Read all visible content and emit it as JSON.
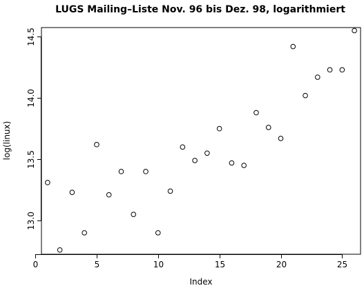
{
  "chart_data": {
    "type": "scatter",
    "title": "LUGS Mailing–Liste Nov. 96 bis Dez. 98, logarithmiert",
    "xlabel": "Index",
    "ylabel": "log(linux)",
    "xlim": [
      0.5,
      26.5
    ],
    "ylim": [
      12.725,
      14.575
    ],
    "xticks": [
      0,
      5,
      10,
      15,
      20,
      25
    ],
    "yticks": [
      13.0,
      13.5,
      14.0,
      14.5
    ],
    "xtick_labels": [
      "0",
      "5",
      "10",
      "15",
      "20",
      "25"
    ],
    "ytick_labels": [
      "13.0",
      "13.5",
      "14.0",
      "14.5"
    ],
    "grid": false,
    "legend": "none",
    "x": [
      1,
      2,
      3,
      4,
      5,
      6,
      7,
      8,
      9,
      10,
      11,
      12,
      13,
      14,
      15,
      16,
      17,
      18,
      19,
      20,
      21,
      22,
      23,
      24,
      25,
      26
    ],
    "y": [
      13.31,
      12.76,
      13.23,
      12.9,
      13.62,
      13.21,
      13.4,
      13.05,
      13.4,
      12.9,
      13.24,
      13.6,
      13.49,
      13.55,
      13.75,
      13.47,
      13.45,
      13.88,
      13.76,
      13.67,
      14.42,
      14.02,
      14.17,
      14.23,
      14.23,
      14.55
    ]
  }
}
